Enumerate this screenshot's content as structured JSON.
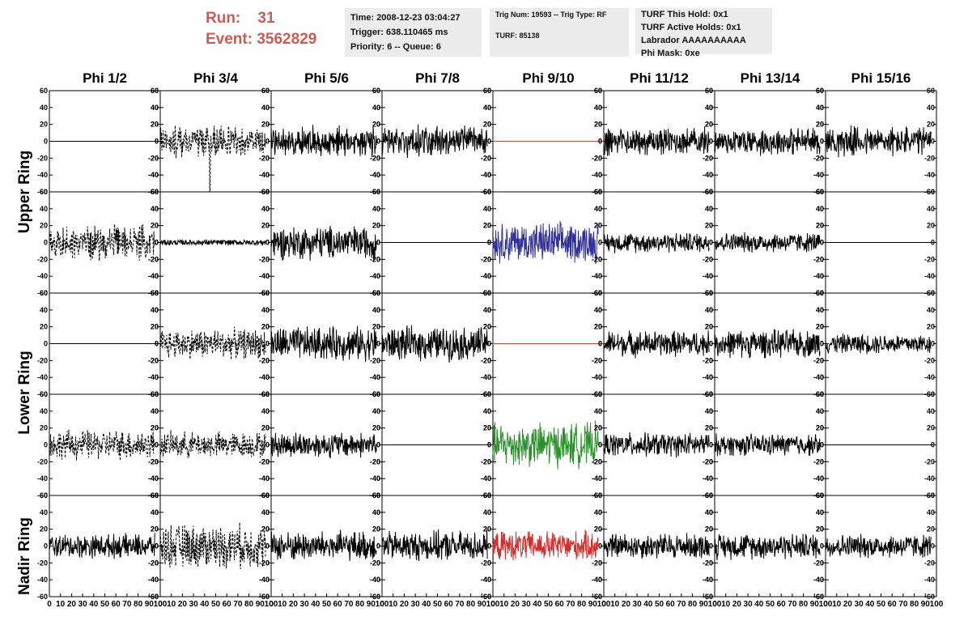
{
  "header": {
    "run_label": "Run:",
    "run_value": "31",
    "event_label": "Event:",
    "event_value": "3562829"
  },
  "info_time": {
    "time": "Time: 2008-12-23 03:04:27",
    "trigger": "Trigger: 638.110465 ms",
    "priority": "Priority: 6 -- Queue: 6"
  },
  "info_trig": {
    "trig": "Trig Num: 19593 -- Trig Type: RF",
    "turf": "TURF: 85138"
  },
  "info_turf": {
    "this_hold": "TURF This Hold: 0x1",
    "active_holds": "TURF Active Holds: 0x1",
    "labrador": "Labrador AAAAAAAAAA",
    "phi_mask": "Phi Mask: 0xe"
  },
  "accent_color": "#d05a54",
  "chart_data": {
    "type": "line",
    "columns": [
      "Phi 1/2",
      "Phi 3/4",
      "Phi 5/6",
      "Phi 7/8",
      "Phi 9/10",
      "Phi 11/12",
      "Phi 13/14",
      "Phi 15/16"
    ],
    "ring_labels": [
      "Upper Ring",
      "Lower Ring",
      "Nadir Ring"
    ],
    "xlim": [
      0,
      100
    ],
    "ylim": [
      -60,
      60
    ],
    "x_ticks": [
      "0",
      "10",
      "20",
      "30",
      "40",
      "50",
      "60",
      "70",
      "80",
      "90",
      "100"
    ],
    "y_ticks": [
      "60",
      "40",
      "20",
      "0",
      "-20",
      "-40",
      "-60"
    ],
    "x_range": [
      0,
      95
    ],
    "colors": {
      "black": "#000000",
      "red": "#d03030",
      "blue": "#30309c",
      "green": "#2a8f2a",
      "flat_red": "#c8483c"
    },
    "rows": [
      [
        {
          "style": "flat",
          "color": "black",
          "amp": 0
        },
        {
          "style": "dash",
          "color": "black",
          "amp": 15,
          "spike": -60
        },
        {
          "style": "noise",
          "color": "black",
          "amp": 15
        },
        {
          "style": "noise",
          "color": "black",
          "amp": 15
        },
        {
          "style": "flat",
          "color": "flat_red",
          "amp": 0
        },
        {
          "style": "noise",
          "color": "black",
          "amp": 14
        },
        {
          "style": "noise",
          "color": "black",
          "amp": 14
        },
        {
          "style": "noise",
          "color": "black",
          "amp": 15
        }
      ],
      [
        {
          "style": "dash",
          "color": "black",
          "amp": 17
        },
        {
          "style": "flat",
          "color": "black",
          "amp": 3
        },
        {
          "style": "noise",
          "color": "black",
          "amp": 17
        },
        {
          "style": "flat",
          "color": "black",
          "amp": 0
        },
        {
          "style": "noise",
          "color": "blue",
          "amp": 20
        },
        {
          "style": "noise",
          "color": "black",
          "amp": 10
        },
        {
          "style": "noise",
          "color": "black",
          "amp": 10
        },
        {
          "style": "flat",
          "color": "black",
          "amp": 0
        }
      ],
      [
        {
          "style": "flat",
          "color": "black",
          "amp": 0
        },
        {
          "style": "dash",
          "color": "black",
          "amp": 15
        },
        {
          "style": "noise",
          "color": "black",
          "amp": 17
        },
        {
          "style": "noise",
          "color": "black",
          "amp": 17
        },
        {
          "style": "flat",
          "color": "flat_red",
          "amp": 0
        },
        {
          "style": "noise",
          "color": "black",
          "amp": 13
        },
        {
          "style": "noise",
          "color": "black",
          "amp": 14
        },
        {
          "style": "noise",
          "color": "black",
          "amp": 10
        }
      ],
      [
        {
          "style": "dash",
          "color": "black",
          "amp": 15
        },
        {
          "style": "dash",
          "color": "black",
          "amp": 13
        },
        {
          "style": "noise",
          "color": "black",
          "amp": 13
        },
        {
          "style": "flat",
          "color": "black",
          "amp": 0
        },
        {
          "style": "noise",
          "color": "green",
          "amp": 22
        },
        {
          "style": "noise",
          "color": "black",
          "amp": 12
        },
        {
          "style": "noise",
          "color": "black",
          "amp": 11
        },
        {
          "style": "flat",
          "color": "black",
          "amp": 0
        }
      ],
      [
        {
          "style": "noise",
          "color": "black",
          "amp": 12
        },
        {
          "style": "dash",
          "color": "black",
          "amp": 22
        },
        {
          "style": "noise",
          "color": "black",
          "amp": 15
        },
        {
          "style": "noise",
          "color": "black",
          "amp": 15
        },
        {
          "style": "noise",
          "color": "red",
          "amp": 15
        },
        {
          "style": "noise",
          "color": "black",
          "amp": 13
        },
        {
          "style": "noise",
          "color": "black",
          "amp": 13
        },
        {
          "style": "noise",
          "color": "black",
          "amp": 12
        }
      ]
    ]
  }
}
